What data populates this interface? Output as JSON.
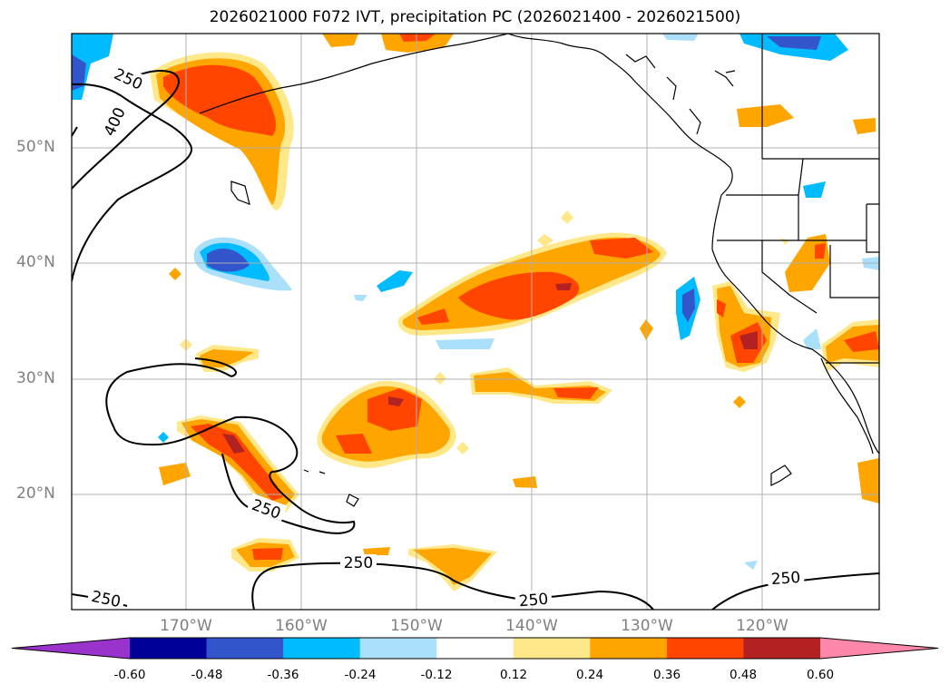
{
  "title": "2026021000 F072 IVT, precipitation PC (2026021400 - 2026021500)",
  "lat_labels": [
    "50°N",
    "40°N",
    "30°N",
    "20°N"
  ],
  "lon_labels": [
    "170°W",
    "160°W",
    "150°W",
    "140°W",
    "130°W",
    "120°W"
  ],
  "contour_labels": [
    "250",
    "400",
    "250",
    "250",
    "250",
    "250",
    "250"
  ],
  "colorbar": {
    "tick_labels": [
      "-0.60",
      "-0.48",
      "-0.36",
      "-0.24",
      "-0.12",
      "0.12",
      "0.24",
      "0.36",
      "0.48",
      "0.60"
    ],
    "colors": [
      "#9933cc",
      "#000099",
      "#3355cc",
      "#00bbff",
      "#aae0fa",
      "#ffffff",
      "#ffe88a",
      "#ffa500",
      "#ff4500",
      "#b22222",
      "#ff88aa"
    ]
  },
  "colors": {
    "frame": "#000000",
    "grid": "#b0b0b0",
    "land_outline": "#000000",
    "ivt_contour": "#000000"
  }
}
